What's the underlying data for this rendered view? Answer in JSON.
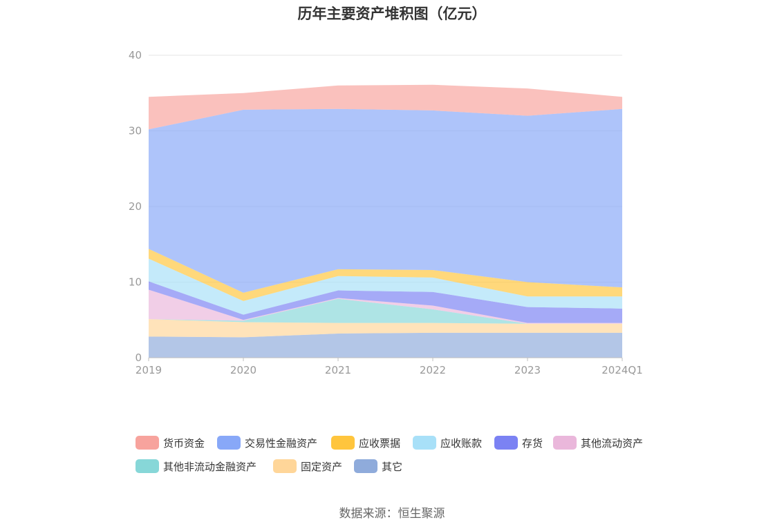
{
  "source_text": "数据来源：恒生聚源",
  "chart_data": {
    "type": "area",
    "stacked": true,
    "title": "历年主要资产堆积图（亿元）",
    "categories": [
      "2019",
      "2020",
      "2021",
      "2022",
      "2023",
      "2024Q1"
    ],
    "ylim": [
      0,
      40
    ],
    "yticks": [
      0,
      10,
      20,
      30,
      40
    ],
    "grid": true,
    "legend_position": "bottom",
    "series": [
      {
        "name": "其它",
        "color": "#8fabdb",
        "values": [
          2.8,
          2.7,
          3.2,
          3.3,
          3.3,
          3.3
        ]
      },
      {
        "name": "固定资产",
        "color": "#ffd699",
        "values": [
          2.3,
          2.0,
          1.4,
          1.3,
          1.2,
          1.2
        ]
      },
      {
        "name": "其他非流动金融资产",
        "color": "#87d7d8",
        "values": [
          0.0,
          0.2,
          3.2,
          1.8,
          0.0,
          0.0
        ]
      },
      {
        "name": "其他流动资产",
        "color": "#eab7db",
        "values": [
          3.9,
          0.1,
          0.1,
          0.5,
          0.1,
          0.1
        ]
      },
      {
        "name": "存货",
        "color": "#7b82f3",
        "values": [
          1.1,
          0.7,
          1.0,
          1.8,
          2.1,
          1.9
        ]
      },
      {
        "name": "应收账款",
        "color": "#a8e0f8",
        "values": [
          3.0,
          1.8,
          1.9,
          1.9,
          1.4,
          1.6
        ]
      },
      {
        "name": "应收票据",
        "color": "#ffc53d",
        "values": [
          1.3,
          1.1,
          0.9,
          1.0,
          1.9,
          1.2
        ]
      },
      {
        "name": "交易性金融资产",
        "color": "#88a8f8",
        "values": [
          15.8,
          24.2,
          21.2,
          21.1,
          22.0,
          23.6
        ]
      },
      {
        "name": "货币资金",
        "color": "#f7a39d",
        "values": [
          4.3,
          2.2,
          3.1,
          3.4,
          3.6,
          1.6
        ]
      }
    ]
  }
}
